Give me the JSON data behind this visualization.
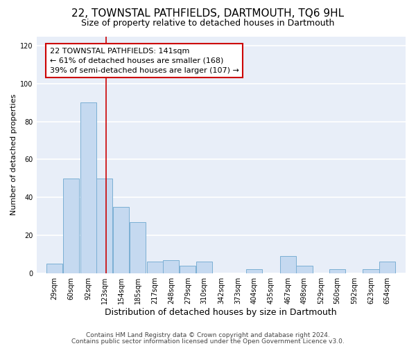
{
  "title": "22, TOWNSTAL PATHFIELDS, DARTMOUTH, TQ6 9HL",
  "subtitle": "Size of property relative to detached houses in Dartmouth",
  "xlabel": "Distribution of detached houses by size in Dartmouth",
  "ylabel": "Number of detached properties",
  "bar_color": "#c5d9f0",
  "bar_edge_color": "#7bafd4",
  "background_color": "#e8eef8",
  "grid_color": "#ffffff",
  "annotation_box_color": "#cc0000",
  "annotation_line1": "22 TOWNSTAL PATHFIELDS: 141sqm",
  "annotation_line2": "← 61% of detached houses are smaller (168)",
  "annotation_line3": "39% of semi-detached houses are larger (107) →",
  "marker_line_value": 141,
  "bins": [
    29,
    60,
    92,
    123,
    154,
    185,
    217,
    248,
    279,
    310,
    342,
    373,
    404,
    435,
    467,
    498,
    529,
    560,
    592,
    623,
    654
  ],
  "values": [
    5,
    50,
    90,
    50,
    35,
    27,
    6,
    7,
    4,
    6,
    0,
    0,
    2,
    0,
    9,
    4,
    0,
    2,
    0,
    2,
    6
  ],
  "ylim": [
    0,
    125
  ],
  "yticks": [
    0,
    20,
    40,
    60,
    80,
    100,
    120
  ],
  "footnote1": "Contains HM Land Registry data © Crown copyright and database right 2024.",
  "footnote2": "Contains public sector information licensed under the Open Government Licence v3.0.",
  "title_fontsize": 11,
  "subtitle_fontsize": 9,
  "xlabel_fontsize": 9,
  "ylabel_fontsize": 8,
  "tick_fontsize": 7,
  "annotation_fontsize": 8,
  "footnote_fontsize": 6.5
}
